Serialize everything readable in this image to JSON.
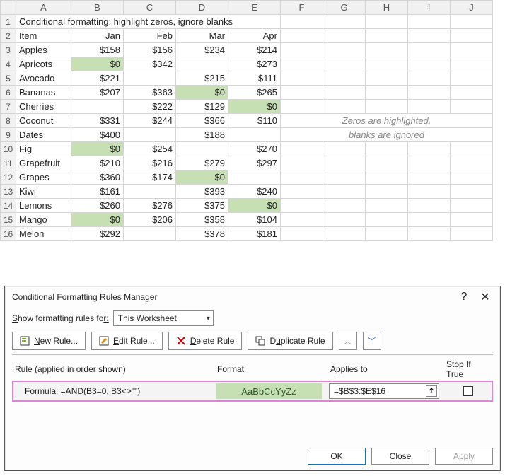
{
  "sheet": {
    "columns": [
      "A",
      "B",
      "C",
      "D",
      "E",
      "F",
      "G",
      "H",
      "I",
      "J"
    ],
    "title": "Conditional formatting: highlight zeros, ignore blanks",
    "headers": {
      "item": "Item",
      "months": [
        "Jan",
        "Feb",
        "Mar",
        "Apr"
      ]
    },
    "highlight_color": "#c6e0b4",
    "rows": [
      {
        "n": 3,
        "item": "Apples",
        "vals": [
          "$158",
          "$156",
          "$234",
          "$214"
        ],
        "hl": [
          false,
          false,
          false,
          false
        ]
      },
      {
        "n": 4,
        "item": "Apricots",
        "vals": [
          "$0",
          "$342",
          "",
          "$273"
        ],
        "hl": [
          true,
          false,
          false,
          false
        ]
      },
      {
        "n": 5,
        "item": "Avocado",
        "vals": [
          "$221",
          "",
          "$215",
          "$111"
        ],
        "hl": [
          false,
          false,
          false,
          false
        ]
      },
      {
        "n": 6,
        "item": "Bananas",
        "vals": [
          "$207",
          "$363",
          "$0",
          "$265"
        ],
        "hl": [
          false,
          false,
          true,
          false
        ]
      },
      {
        "n": 7,
        "item": "Cherries",
        "vals": [
          "",
          "$222",
          "$129",
          "$0"
        ],
        "hl": [
          false,
          false,
          false,
          true
        ]
      },
      {
        "n": 8,
        "item": "Coconut",
        "vals": [
          "$331",
          "$244",
          "$366",
          "$110"
        ],
        "hl": [
          false,
          false,
          false,
          false
        ]
      },
      {
        "n": 9,
        "item": "Dates",
        "vals": [
          "$400",
          "",
          "$188",
          ""
        ],
        "hl": [
          false,
          false,
          false,
          false
        ]
      },
      {
        "n": 10,
        "item": "Fig",
        "vals": [
          "$0",
          "$254",
          "",
          "$270"
        ],
        "hl": [
          true,
          false,
          false,
          false
        ]
      },
      {
        "n": 11,
        "item": "Grapefruit",
        "vals": [
          "$210",
          "$216",
          "$279",
          "$297"
        ],
        "hl": [
          false,
          false,
          false,
          false
        ]
      },
      {
        "n": 12,
        "item": "Grapes",
        "vals": [
          "$360",
          "$174",
          "$0",
          ""
        ],
        "hl": [
          false,
          false,
          true,
          false
        ]
      },
      {
        "n": 13,
        "item": "Kiwi",
        "vals": [
          "$161",
          "",
          "$393",
          "$240"
        ],
        "hl": [
          false,
          false,
          false,
          false
        ]
      },
      {
        "n": 14,
        "item": "Lemons",
        "vals": [
          "$260",
          "$276",
          "$375",
          "$0"
        ],
        "hl": [
          false,
          false,
          false,
          true
        ]
      },
      {
        "n": 15,
        "item": "Mango",
        "vals": [
          "$0",
          "$206",
          "$358",
          "$104"
        ],
        "hl": [
          true,
          false,
          false,
          false
        ]
      },
      {
        "n": 16,
        "item": "Melon",
        "vals": [
          "$292",
          "",
          "$378",
          "$181"
        ],
        "hl": [
          false,
          false,
          false,
          false
        ]
      }
    ],
    "note_line1": "Zeros are highlighted,",
    "note_line2": "blanks are ignored"
  },
  "dialog": {
    "title": "Conditional Formatting Rules Manager",
    "show_label_pre": "S",
    "show_label_mid": "how formatting rules fo",
    "show_label_suf": "r:",
    "scope": "This Worksheet",
    "buttons": {
      "new": "New Rule...",
      "edit": "Edit Rule...",
      "delete": "Delete Rule",
      "duplicate": "Duplicate Rule"
    },
    "cols": {
      "rule": "Rule (applied in order shown)",
      "format": "Format",
      "applies": "Applies to",
      "stop": "Stop If True"
    },
    "rule": {
      "formula": "Formula: =AND(B3=0, B3<>\"\")",
      "format_sample": "AaBbCcYyZz",
      "applies_to": "=$B$3:$E$16"
    },
    "footer": {
      "ok": "OK",
      "close": "Close",
      "apply": "Apply"
    }
  }
}
